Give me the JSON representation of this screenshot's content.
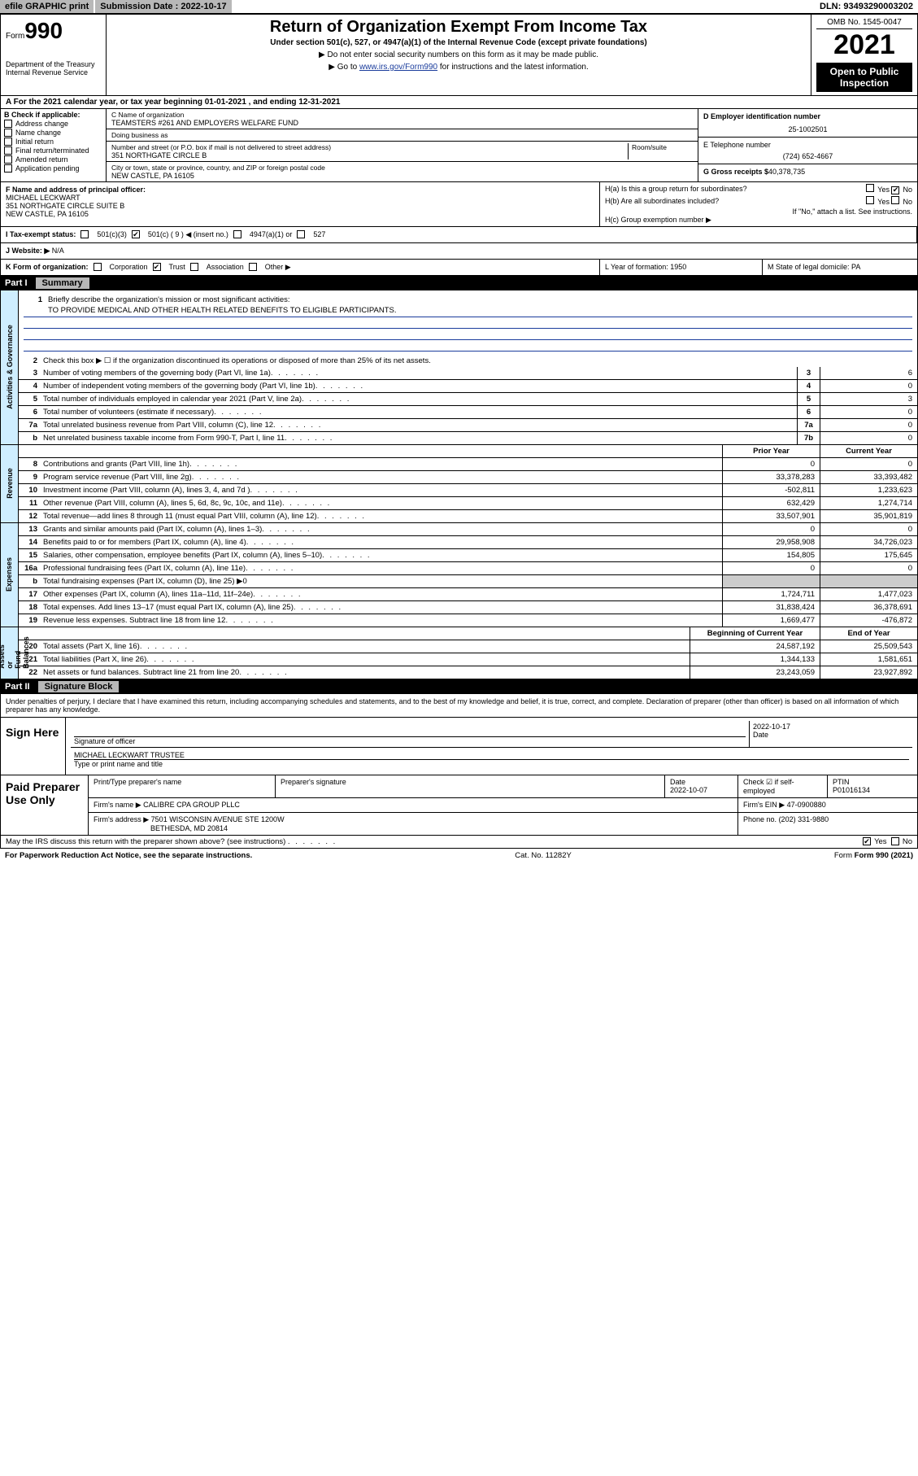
{
  "topbar": {
    "efile": "efile GRAPHIC print",
    "subm_label": "Submission Date : ",
    "subm_date": "2022-10-17",
    "dln": "DLN: 93493290003202"
  },
  "header": {
    "form_word": "Form",
    "form_num": "990",
    "dept": "Department of the Treasury\nInternal Revenue Service",
    "title": "Return of Organization Exempt From Income Tax",
    "sub1": "Under section 501(c), 527, or 4947(a)(1) of the Internal Revenue Code (except private foundations)",
    "sub2": "▶ Do not enter social security numbers on this form as it may be made public.",
    "sub3_pre": "▶ Go to ",
    "sub3_link": "www.irs.gov/Form990",
    "sub3_post": " for instructions and the latest information.",
    "omb": "OMB No. 1545-0047",
    "year": "2021",
    "open": "Open to Public Inspection"
  },
  "row_a": "A For the 2021 calendar year, or tax year beginning 01-01-2021   , and ending 12-31-2021",
  "b": {
    "header": "B Check if applicable:",
    "items": [
      "Address change",
      "Name change",
      "Initial return",
      "Final return/terminated",
      "Amended return",
      "Application pending"
    ],
    "c_label": "C Name of organization",
    "c_name": "TEAMSTERS #261 AND EMPLOYERS WELFARE FUND",
    "dba_label": "Doing business as",
    "street_label": "Number and street (or P.O. box if mail is not delivered to street address)",
    "room_label": "Room/suite",
    "street": "351 NORTHGATE CIRCLE B",
    "city_label": "City or town, state or province, country, and ZIP or foreign postal code",
    "city": "NEW CASTLE, PA  16105",
    "d_label": "D Employer identification number",
    "d_ein": "25-1002501",
    "e_label": "E Telephone number",
    "e_phone": "(724) 652-4667",
    "g_label": "G Gross receipts $",
    "g_amount": "40,378,735"
  },
  "fh": {
    "f_label": "F  Name and address of principal officer:",
    "f_name": "MICHAEL LECKWART",
    "f_addr1": "351 NORTHGATE CIRCLE SUITE B",
    "f_addr2": "NEW CASTLE, PA  16105",
    "ha": "H(a)  Is this a group return for subordinates?",
    "ha_yes": "Yes",
    "ha_no": "No",
    "hb": "H(b)  Are all subordinates included?",
    "hb_yes": "Yes",
    "hb_no": "No",
    "hb_note": "If \"No,\" attach a list. See instructions.",
    "hc": "H(c)  Group exemption number ▶"
  },
  "i": {
    "label": "I   Tax-exempt status:",
    "c3": "501(c)(3)",
    "c_insert": "501(c) ( 9 ) ◀ (insert no.)",
    "a1": "4947(a)(1) or",
    "s527": "527"
  },
  "j": {
    "label": "J   Website: ▶",
    "val": "N/A"
  },
  "k": {
    "label": "K Form of organization:",
    "corp": "Corporation",
    "trust": "Trust",
    "assoc": "Association",
    "other": "Other ▶",
    "l": "L Year of formation: 1950",
    "m": "M State of legal domicile: PA"
  },
  "part1": {
    "num": "Part I",
    "title": "Summary",
    "q1": "Briefly describe the organization's mission or most significant activities:",
    "mission": "TO PROVIDE MEDICAL AND OTHER HEALTH RELATED BENEFITS TO ELIGIBLE PARTICIPANTS.",
    "q2": "Check this box ▶ ☐  if the organization discontinued its operations or disposed of more than 25% of its net assets.",
    "vtabs": {
      "gov": "Activities & Governance",
      "rev": "Revenue",
      "exp": "Expenses",
      "net": "Net Assets or\nFund Balances"
    },
    "lines_gov": [
      {
        "n": "3",
        "t": "Number of voting members of the governing body (Part VI, line 1a)",
        "box": "3",
        "v": "6"
      },
      {
        "n": "4",
        "t": "Number of independent voting members of the governing body (Part VI, line 1b)",
        "box": "4",
        "v": "0"
      },
      {
        "n": "5",
        "t": "Total number of individuals employed in calendar year 2021 (Part V, line 2a)",
        "box": "5",
        "v": "3"
      },
      {
        "n": "6",
        "t": "Total number of volunteers (estimate if necessary)",
        "box": "6",
        "v": "0"
      },
      {
        "n": "7a",
        "t": "Total unrelated business revenue from Part VIII, column (C), line 12",
        "box": "7a",
        "v": "0"
      },
      {
        "n": "b",
        "t": "Net unrelated business taxable income from Form 990-T, Part I, line 11",
        "box": "7b",
        "v": "0"
      }
    ],
    "col_prior": "Prior Year",
    "col_curr": "Current Year",
    "lines_rev": [
      {
        "n": "8",
        "t": "Contributions and grants (Part VIII, line 1h)",
        "p": "0",
        "c": "0"
      },
      {
        "n": "9",
        "t": "Program service revenue (Part VIII, line 2g)",
        "p": "33,378,283",
        "c": "33,393,482"
      },
      {
        "n": "10",
        "t": "Investment income (Part VIII, column (A), lines 3, 4, and 7d )",
        "p": "-502,811",
        "c": "1,233,623"
      },
      {
        "n": "11",
        "t": "Other revenue (Part VIII, column (A), lines 5, 6d, 8c, 9c, 10c, and 11e)",
        "p": "632,429",
        "c": "1,274,714"
      },
      {
        "n": "12",
        "t": "Total revenue—add lines 8 through 11 (must equal Part VIII, column (A), line 12)",
        "p": "33,507,901",
        "c": "35,901,819"
      }
    ],
    "lines_exp": [
      {
        "n": "13",
        "t": "Grants and similar amounts paid (Part IX, column (A), lines 1–3)",
        "p": "0",
        "c": "0"
      },
      {
        "n": "14",
        "t": "Benefits paid to or for members (Part IX, column (A), line 4)",
        "p": "29,958,908",
        "c": "34,726,023"
      },
      {
        "n": "15",
        "t": "Salaries, other compensation, employee benefits (Part IX, column (A), lines 5–10)",
        "p": "154,805",
        "c": "175,645"
      },
      {
        "n": "16a",
        "t": "Professional fundraising fees (Part IX, column (A), line 11e)",
        "p": "0",
        "c": "0"
      },
      {
        "n": "b",
        "t": "Total fundraising expenses (Part IX, column (D), line 25) ▶0",
        "p": "",
        "c": "",
        "shade": true
      },
      {
        "n": "17",
        "t": "Other expenses (Part IX, column (A), lines 11a–11d, 11f–24e)",
        "p": "1,724,711",
        "c": "1,477,023"
      },
      {
        "n": "18",
        "t": "Total expenses. Add lines 13–17 (must equal Part IX, column (A), line 25)",
        "p": "31,838,424",
        "c": "36,378,691"
      },
      {
        "n": "19",
        "t": "Revenue less expenses. Subtract line 18 from line 12",
        "p": "1,669,477",
        "c": "-476,872"
      }
    ],
    "col_begin": "Beginning of Current Year",
    "col_end": "End of Year",
    "lines_net": [
      {
        "n": "20",
        "t": "Total assets (Part X, line 16)",
        "p": "24,587,192",
        "c": "25,509,543"
      },
      {
        "n": "21",
        "t": "Total liabilities (Part X, line 26)",
        "p": "1,344,133",
        "c": "1,581,651"
      },
      {
        "n": "22",
        "t": "Net assets or fund balances. Subtract line 21 from line 20",
        "p": "23,243,059",
        "c": "23,927,892"
      }
    ]
  },
  "part2": {
    "num": "Part II",
    "title": "Signature Block",
    "decl": "Under penalties of perjury, I declare that I have examined this return, including accompanying schedules and statements, and to the best of my knowledge and belief, it is true, correct, and complete. Declaration of preparer (other than officer) is based on all information of which preparer has any knowledge.",
    "sign_here": "Sign Here",
    "sig_officer": "Signature of officer",
    "sig_date_label": "Date",
    "sig_date": "2022-10-17",
    "officer_name": "MICHAEL LECKWART  TRUSTEE",
    "type_name": "Type or print name and title",
    "paid": "Paid Preparer Use Only",
    "prep_name_lbl": "Print/Type preparer's name",
    "prep_sig_lbl": "Preparer's signature",
    "prep_date_lbl": "Date",
    "prep_date": "2022-10-07",
    "check_if": "Check ☑ if self-employed",
    "ptin_lbl": "PTIN",
    "ptin": "P01016134",
    "firm_name_lbl": "Firm's name   ▶",
    "firm_name": "CALIBRE CPA GROUP PLLC",
    "firm_ein_lbl": "Firm's EIN ▶",
    "firm_ein": "47-0900880",
    "firm_addr_lbl": "Firm's address ▶",
    "firm_addr1": "7501 WISCONSIN AVENUE STE 1200W",
    "firm_addr2": "BETHESDA, MD  20814",
    "firm_phone_lbl": "Phone no.",
    "firm_phone": "(202) 331-9880",
    "discuss": "May the IRS discuss this return with the preparer shown above? (see instructions)",
    "d_yes": "Yes",
    "d_no": "No"
  },
  "footer": {
    "left": "For Paperwork Reduction Act Notice, see the separate instructions.",
    "mid": "Cat. No. 11282Y",
    "right": "Form 990 (2021)"
  }
}
